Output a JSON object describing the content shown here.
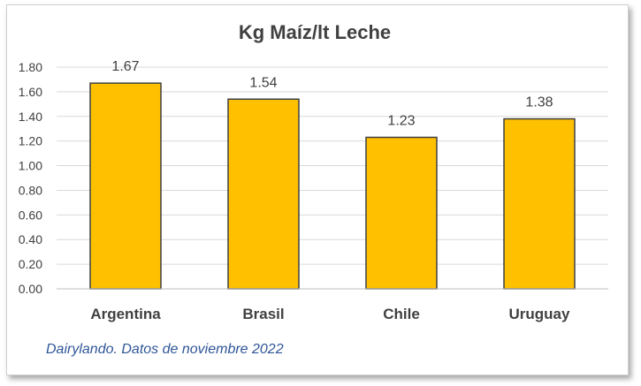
{
  "chart_data": {
    "type": "bar",
    "title": "Kg Maíz/lt Leche",
    "categories": [
      "Argentina",
      "Brasil",
      "Chile",
      "Uruguay"
    ],
    "values": [
      1.67,
      1.54,
      1.23,
      1.38
    ],
    "data_labels": [
      "1.67",
      "1.54",
      "1.23",
      "1.38"
    ],
    "ylim": [
      0,
      1.8
    ],
    "yticks": [
      "0.00",
      "0.20",
      "0.40",
      "0.60",
      "0.80",
      "1.00",
      "1.20",
      "1.40",
      "1.60",
      "1.80"
    ],
    "grid": true,
    "bar_color": "#FFC000",
    "bar_border_color": "#404040",
    "source_note": "Dairylando. Datos de noviembre 2022"
  }
}
